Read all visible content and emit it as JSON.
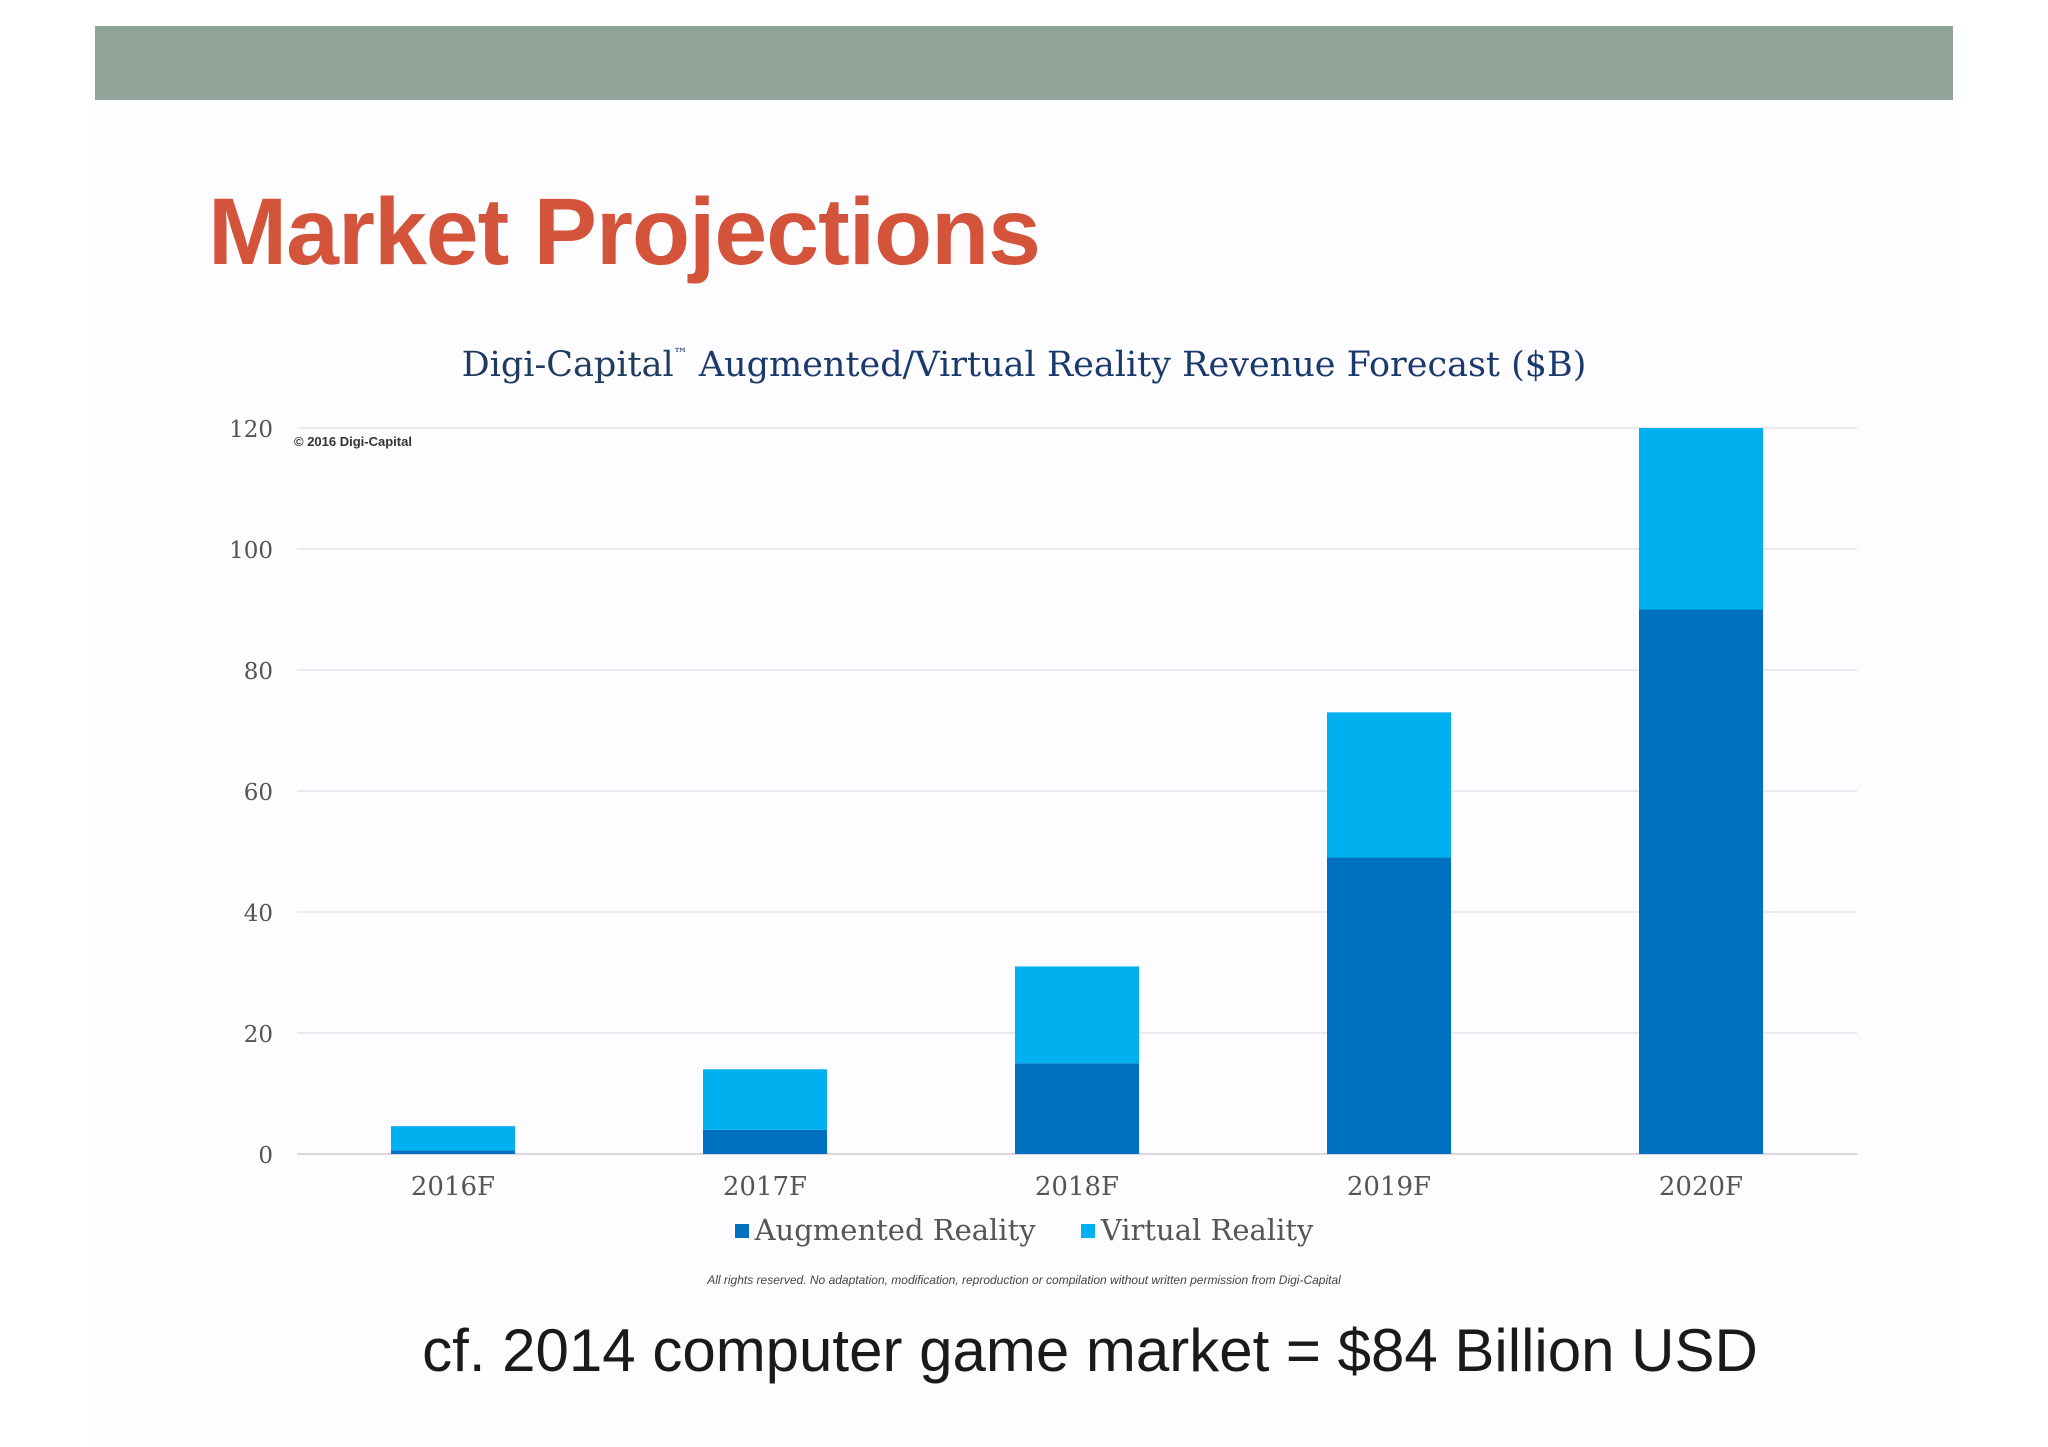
{
  "slide": {
    "title": "Market Projections",
    "caption": "cf. 2014 computer game market = $84 Billion USD"
  },
  "colors": {
    "top_bar": "#91a498",
    "title": "#d3543a",
    "augmented": "#0071c1",
    "virtual": "#00b0ef",
    "grid": "#e4e4ea"
  },
  "chart_data": {
    "type": "bar",
    "stacked": true,
    "title_brand": "Digi-Capital",
    "title_tm": "™",
    "title": "Augmented/Virtual Reality Revenue Forecast ($B)",
    "copyright": "© 2016 Digi-Capital",
    "footnote": "All rights reserved. No adaptation, modification, reproduction or compilation without written permission from Digi-Capital",
    "categories": [
      "2016F",
      "2017F",
      "2018F",
      "2019F",
      "2020F"
    ],
    "series": [
      {
        "name": "Augmented Reality",
        "color": "#0071c1",
        "values": [
          0.6,
          4,
          15,
          49,
          90
        ]
      },
      {
        "name": "Virtual Reality",
        "color": "#00b0ef",
        "values": [
          4,
          10,
          16,
          24,
          30
        ]
      }
    ],
    "ylim": [
      0,
      120
    ],
    "yticks": [
      0,
      20,
      40,
      60,
      80,
      100,
      120
    ],
    "grid": true,
    "legend_position": "bottom"
  }
}
